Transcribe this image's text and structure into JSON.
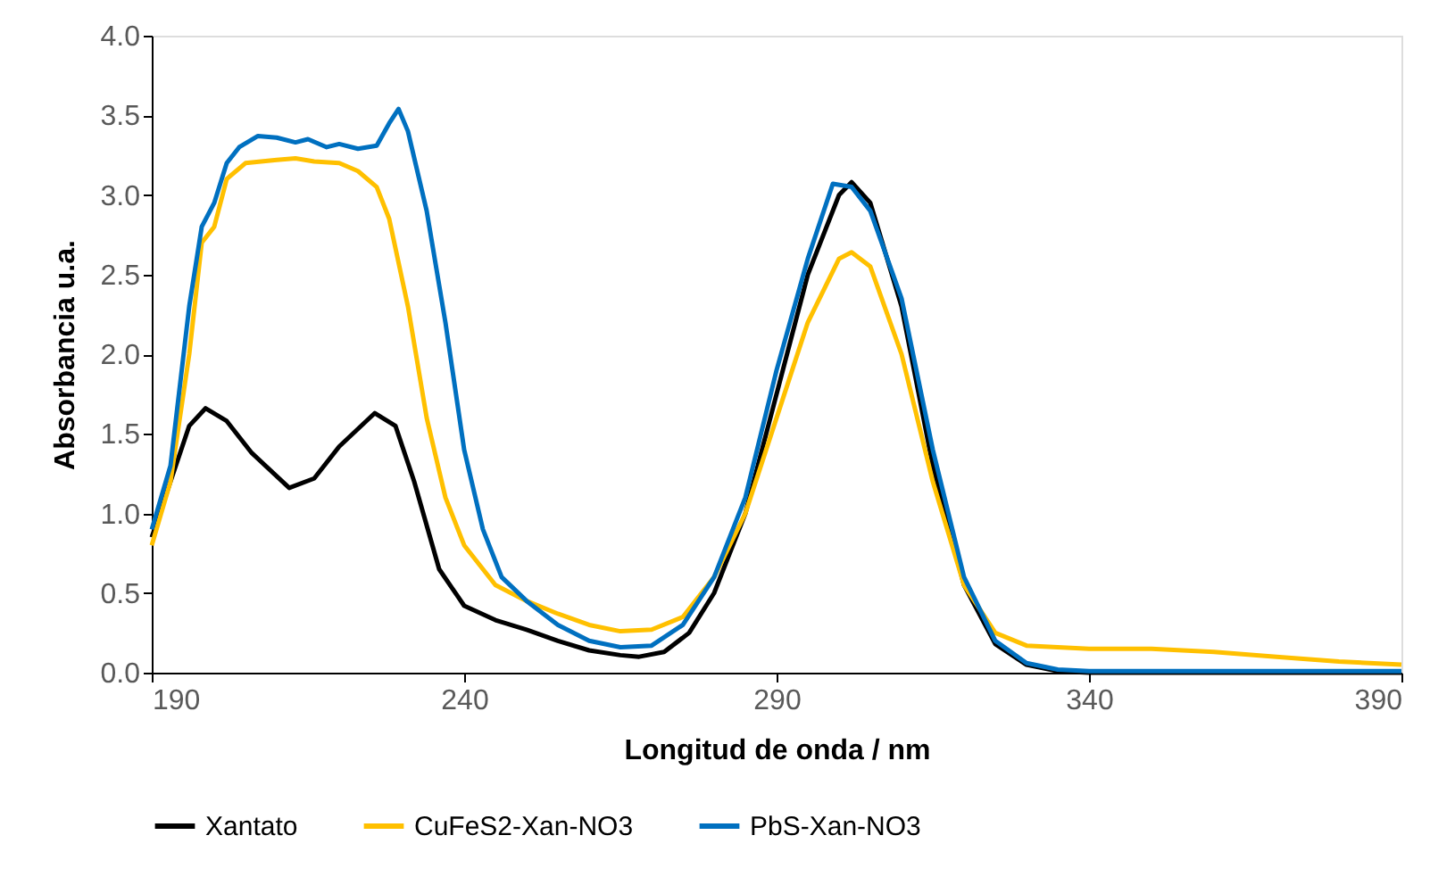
{
  "chart_data": {
    "type": "line",
    "xlabel": "Longitud de onda / nm",
    "ylabel": "Absorbancia u.a.",
    "xlim": [
      190,
      390
    ],
    "xticks": [
      190,
      240,
      290,
      340,
      390
    ],
    "ylim": [
      0,
      4
    ],
    "yticks": [
      {
        "value": 0,
        "label": "0.0"
      },
      {
        "value": 0.5,
        "label": "0.5"
      },
      {
        "value": 1,
        "label": "1.0"
      },
      {
        "value": 1.5,
        "label": "1.5"
      },
      {
        "value": 2,
        "label": "2.0"
      },
      {
        "value": 2.5,
        "label": "2.5"
      },
      {
        "value": 3,
        "label": "3.0"
      },
      {
        "value": 3.5,
        "label": "3.5"
      },
      {
        "value": 4,
        "label": "4.0"
      }
    ],
    "grid": false,
    "legend": "bottom",
    "marker": "none",
    "line_style": "solid",
    "series": [
      {
        "name": "Xantato",
        "color": "#000000",
        "x": [
          190,
          193,
          196,
          198.6,
          202,
          206,
          212,
          216,
          220,
          225.7,
          229,
          232,
          236,
          240,
          245,
          250,
          255,
          260,
          265,
          268,
          272,
          276,
          280,
          285,
          290,
          295,
          300,
          302,
          305,
          310,
          315,
          320,
          325,
          330,
          335,
          340,
          390
        ],
        "values": [
          0.85,
          1.2,
          1.55,
          1.66,
          1.58,
          1.38,
          1.16,
          1.22,
          1.42,
          1.63,
          1.55,
          1.2,
          0.65,
          0.42,
          0.33,
          0.27,
          0.2,
          0.14,
          0.11,
          0.1,
          0.13,
          0.25,
          0.5,
          1.0,
          1.75,
          2.5,
          3.0,
          3.08,
          2.95,
          2.3,
          1.3,
          0.55,
          0.18,
          0.05,
          0.01,
          0,
          0
        ]
      },
      {
        "name": "CuFeS2-Xan-NO3",
        "color": "#ffc000",
        "x": [
          190,
          193,
          196,
          198,
          200,
          202,
          205,
          210,
          213,
          216,
          220,
          223,
          226,
          228,
          231,
          234,
          237,
          240,
          245,
          250,
          255,
          260,
          265,
          270,
          275,
          280,
          285,
          290,
          295,
          300,
          302,
          305,
          310,
          315,
          320,
          325,
          330,
          340,
          350,
          360,
          370,
          380,
          390
        ],
        "values": [
          0.8,
          1.2,
          2.0,
          2.7,
          2.8,
          3.1,
          3.2,
          3.22,
          3.23,
          3.21,
          3.2,
          3.15,
          3.05,
          2.85,
          2.3,
          1.6,
          1.1,
          0.8,
          0.55,
          0.45,
          0.37,
          0.3,
          0.26,
          0.27,
          0.35,
          0.6,
          1.0,
          1.6,
          2.2,
          2.6,
          2.64,
          2.55,
          2.0,
          1.2,
          0.55,
          0.25,
          0.17,
          0.15,
          0.15,
          0.13,
          0.1,
          0.07,
          0.05
        ]
      },
      {
        "name": "PbS-Xan-NO3",
        "color": "#0070c0",
        "x": [
          190,
          193,
          196,
          198,
          200,
          202,
          204,
          207,
          210,
          213,
          215,
          218,
          220,
          223,
          226,
          228,
          229.5,
          231,
          234,
          237,
          240,
          243,
          246,
          250,
          255,
          260,
          265,
          270,
          275,
          280,
          285,
          290,
          295,
          299,
          302,
          305,
          310,
          315,
          320,
          325,
          330,
          335,
          340,
          390
        ],
        "values": [
          0.9,
          1.3,
          2.3,
          2.8,
          2.95,
          3.2,
          3.3,
          3.37,
          3.36,
          3.33,
          3.35,
          3.3,
          3.32,
          3.29,
          3.31,
          3.45,
          3.54,
          3.4,
          2.9,
          2.2,
          1.4,
          0.9,
          0.6,
          0.45,
          0.3,
          0.2,
          0.16,
          0.17,
          0.3,
          0.6,
          1.1,
          1.9,
          2.6,
          3.07,
          3.05,
          2.9,
          2.35,
          1.4,
          0.6,
          0.2,
          0.06,
          0.02,
          0.01,
          0.01
        ]
      }
    ]
  }
}
